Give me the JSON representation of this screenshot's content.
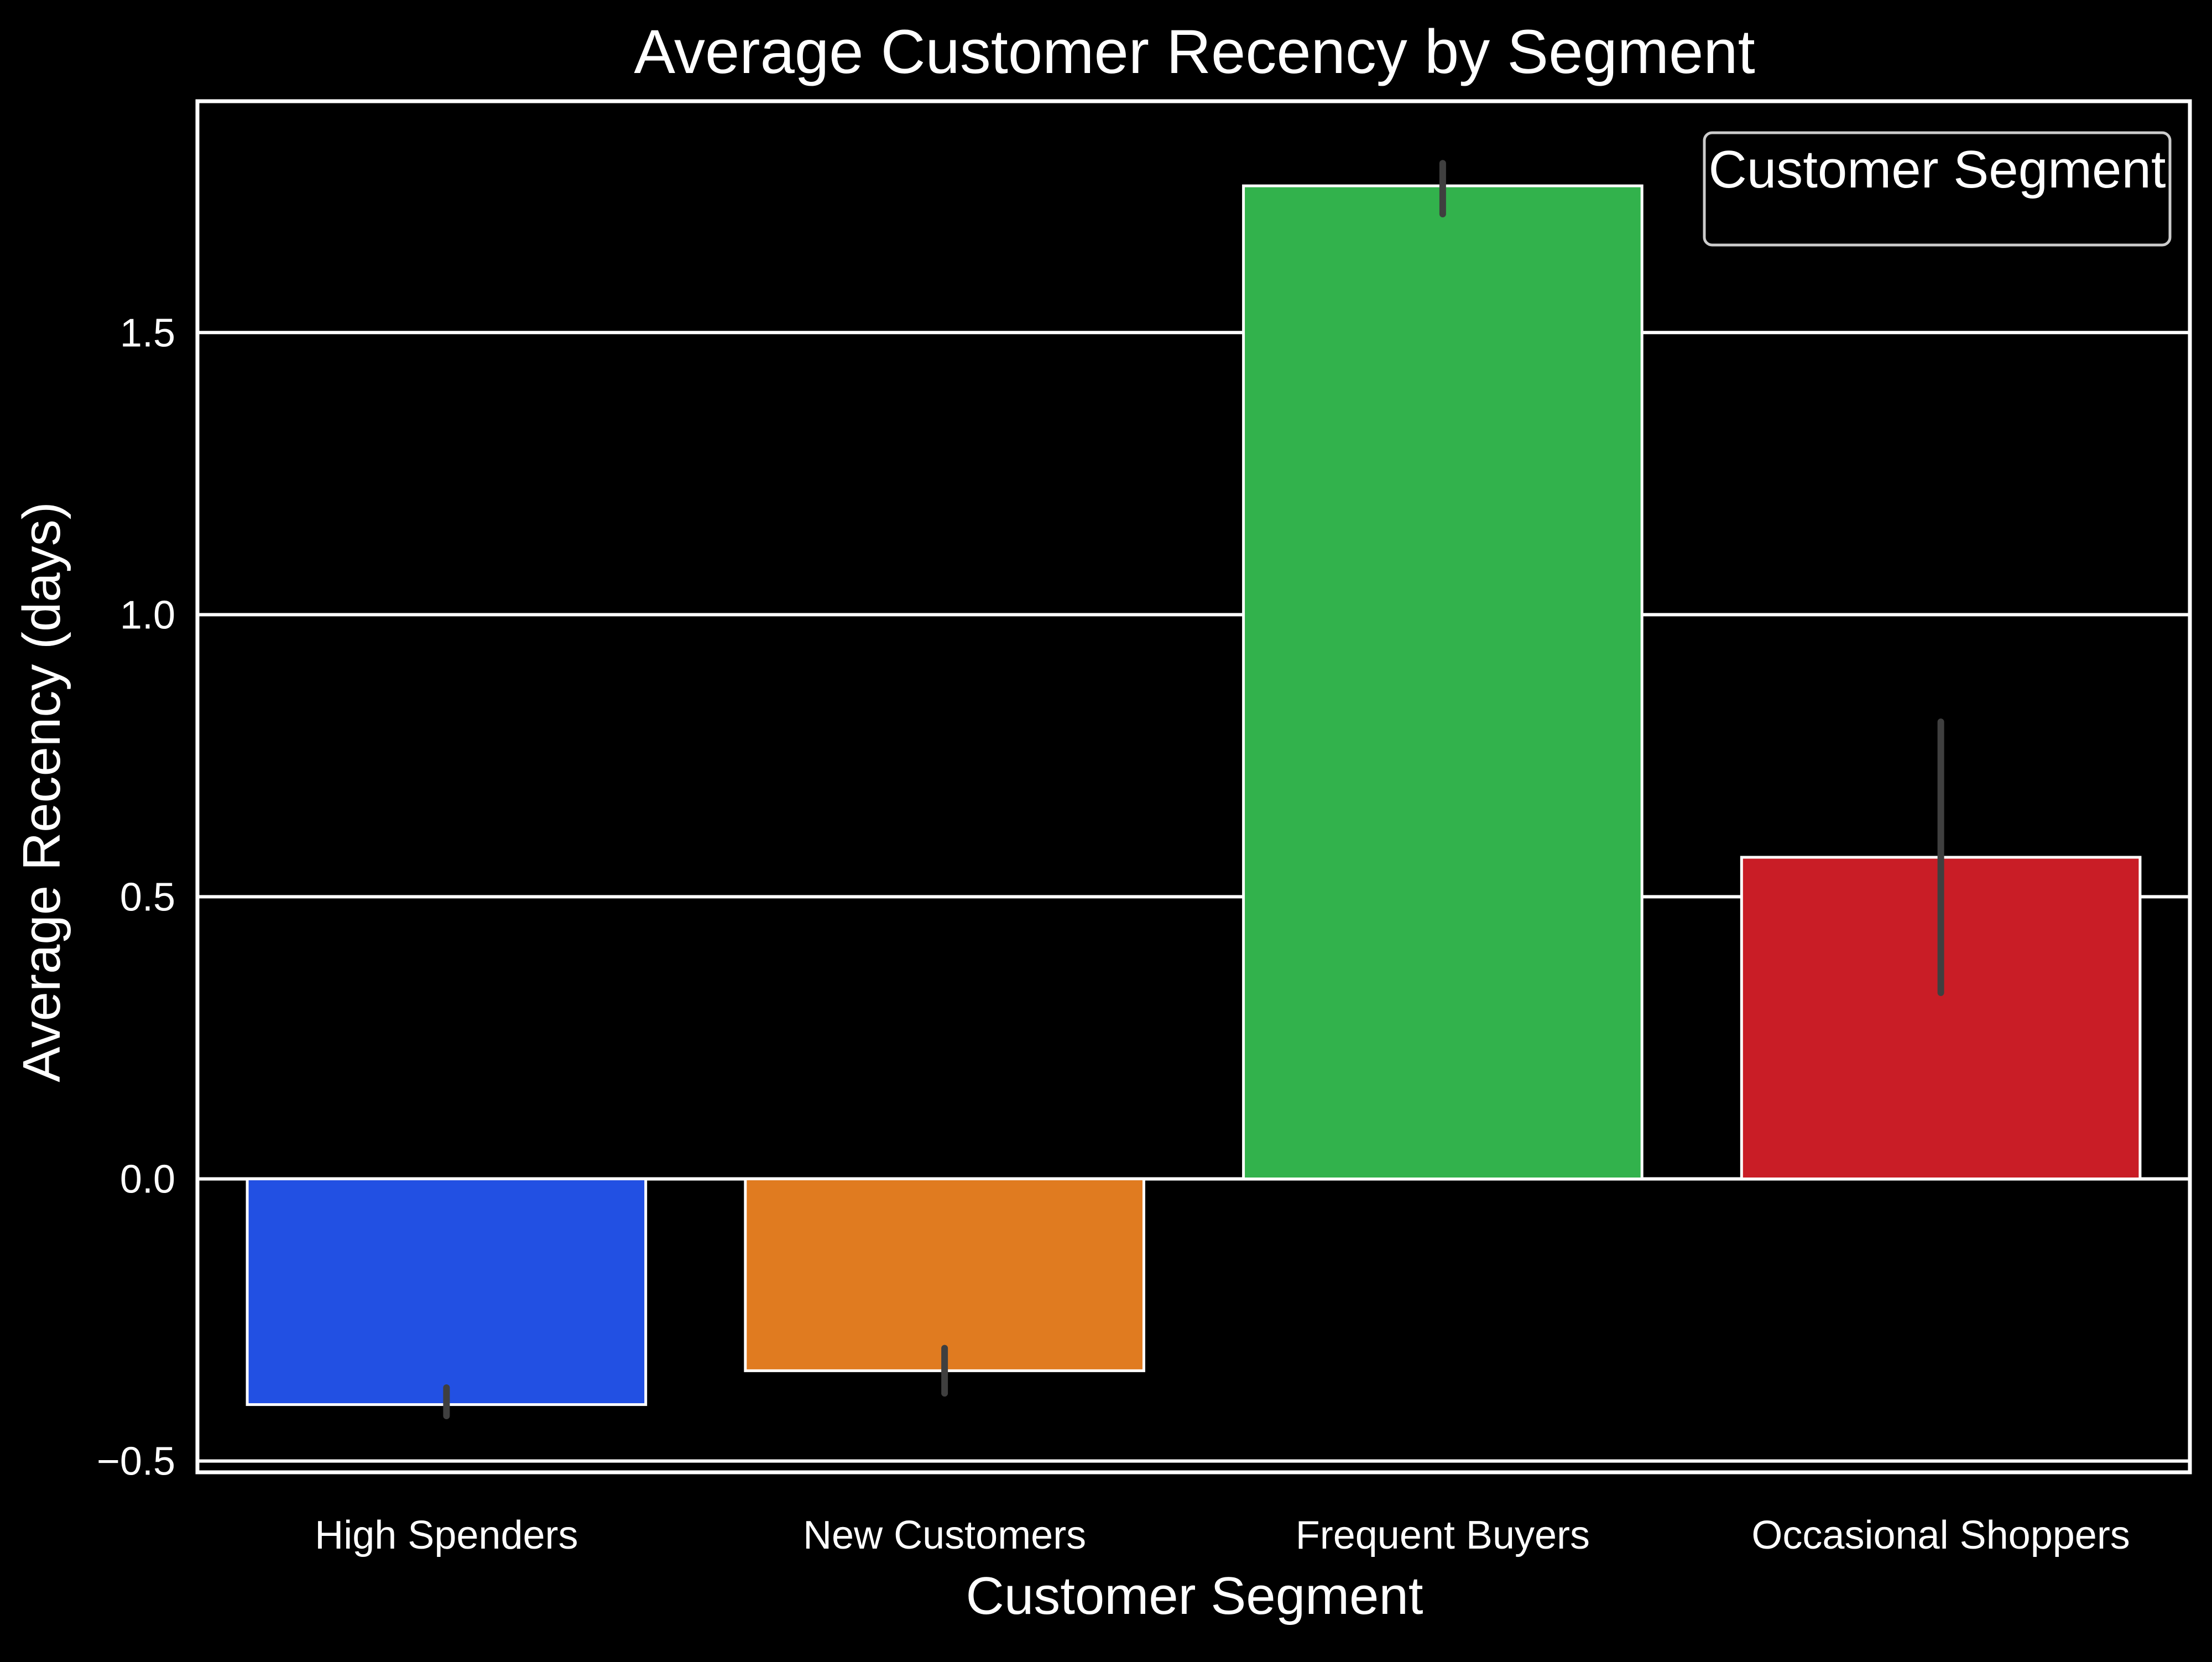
{
  "chart_data": {
    "type": "bar",
    "title": "Average Customer Recency by Segment",
    "xlabel": "Customer Segment",
    "ylabel": "Average Recency (days)",
    "categories": [
      "High Spenders",
      "New Customers",
      "Frequent Buyers",
      "Occasional Shoppers"
    ],
    "values": [
      -0.4,
      -0.34,
      1.76,
      0.57
    ],
    "error_bars": [
      [
        -0.42,
        -0.37
      ],
      [
        -0.38,
        -0.3
      ],
      [
        1.71,
        1.8
      ],
      [
        0.33,
        0.81
      ]
    ],
    "colors": [
      "#2250e3",
      "#e07b20",
      "#32b24c",
      "#c91d26"
    ],
    "ylim": [
      -0.52,
      1.91
    ],
    "yticks": [
      -0.5,
      0.0,
      0.5,
      1.0,
      1.5
    ],
    "ytick_labels": [
      "−0.5",
      "0.0",
      "0.5",
      "1.0",
      "1.5"
    ],
    "grid": true,
    "legend": {
      "title": "Customer Segment",
      "placement": "top-right"
    },
    "style": {
      "background": "#000000",
      "foreground": "#ffffff",
      "errorbar_color": "#3f3f3f"
    }
  }
}
